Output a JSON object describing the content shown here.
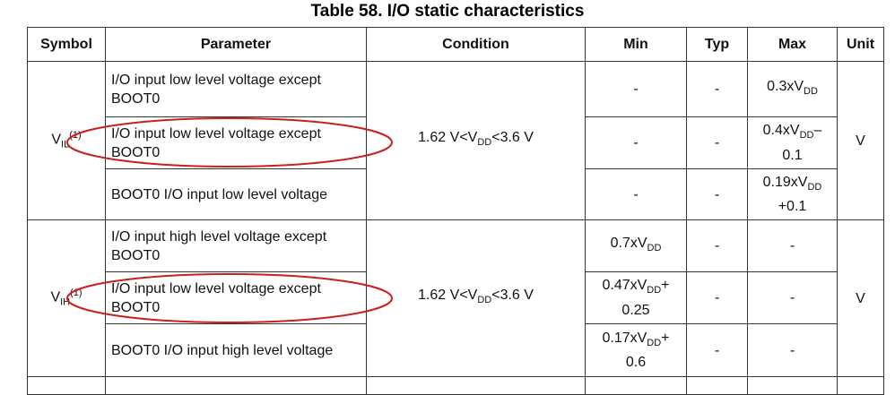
{
  "title": "Table 58. I/O static characteristics",
  "header": [
    "Symbol",
    "Parameter",
    "Condition",
    "Min",
    "Typ",
    "Max",
    "Unit"
  ],
  "groups": [
    {
      "symbol": [
        "V",
        {
          "sub": "IL"
        },
        {
          "sup": "(1)"
        }
      ],
      "condition": [
        "1.62 V<V",
        {
          "sub": "DD"
        },
        "<3.6 V"
      ],
      "unit": [
        "V"
      ],
      "rows": [
        {
          "parameter": [
            "I/O input low level voltage except BOOT0"
          ],
          "min": [
            "-"
          ],
          "typ": [
            "-"
          ],
          "max": [
            "0.3xV",
            {
              "sub": "DD"
            }
          ]
        },
        {
          "parameter": [
            "I/O input low level voltage except BOOT0"
          ],
          "min": [
            "-"
          ],
          "typ": [
            "-"
          ],
          "max": [
            "0.4xV",
            {
              "sub": "DD"
            },
            "– 0.1"
          ]
        },
        {
          "parameter": [
            "BOOT0 I/O input low level voltage"
          ],
          "min": [
            "-"
          ],
          "typ": [
            "-"
          ],
          "max": [
            "0.19xV",
            {
              "sub": "DD"
            },
            " +0.1"
          ]
        }
      ]
    },
    {
      "symbol": [
        "V",
        {
          "sub": "IH"
        },
        {
          "sup": "(1)"
        }
      ],
      "condition": [
        "1.62 V<V",
        {
          "sub": "DD"
        },
        "<3.6 V"
      ],
      "unit": [
        "V"
      ],
      "rows": [
        {
          "parameter": [
            "I/O input high level voltage except BOOT0"
          ],
          "min": [
            "0.7xV",
            {
              "sub": "DD"
            }
          ],
          "typ": [
            "-"
          ],
          "max": [
            "-"
          ]
        },
        {
          "parameter": [
            "I/O input low level voltage except BOOT0"
          ],
          "min": [
            "0.47xV",
            {
              "sub": "DD"
            },
            "+ 0.25"
          ],
          "typ": [
            "-"
          ],
          "max": [
            "-"
          ]
        },
        {
          "parameter": [
            "BOOT0 I/O input high level voltage"
          ],
          "min": [
            "0.17xV",
            {
              "sub": "DD"
            },
            "+ 0.6"
          ],
          "typ": [
            "-"
          ],
          "max": [
            "-"
          ]
        }
      ]
    }
  ]
}
